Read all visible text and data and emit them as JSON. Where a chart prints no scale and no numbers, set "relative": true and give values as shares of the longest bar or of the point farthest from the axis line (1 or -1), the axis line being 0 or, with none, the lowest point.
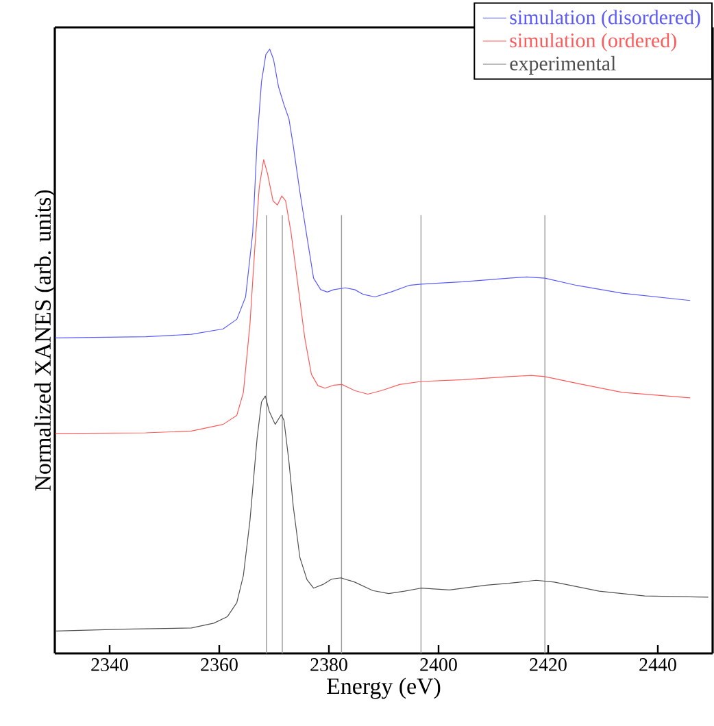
{
  "chart_data": {
    "type": "line",
    "xlabel": "Energy (eV)",
    "ylabel": "Normalized XANES (arb. units)",
    "xlim": [
      2330,
      2450
    ],
    "xticks": [
      2340,
      2360,
      2380,
      2400,
      2420,
      2440
    ],
    "relative": true,
    "tick_labels": "x",
    "legend": "top right",
    "line_style": "solid",
    "series": [
      {
        "name": "simulation (disordered)",
        "color": "#5a5aff",
        "x": [
          2330.1,
          2346.6,
          2354.9,
          2360.7,
          2363.2,
          2364.8,
          2366.1,
          2366.9,
          2367.7,
          2368.5,
          2369.2,
          2369.9,
          2370.8,
          2371.8,
          2372.7,
          2373.5,
          2374.7,
          2376.0,
          2377.2,
          2378.5,
          2379.7,
          2380.9,
          2383.0,
          2384.7,
          2386.3,
          2388.4,
          2391.3,
          2394.6,
          2396.8,
          2404.5,
          2412.8,
          2416.1,
          2419.4,
          2425.2,
          2433.5,
          2445.9
        ],
        "values": [
          0.522,
          0.524,
          0.528,
          0.537,
          0.553,
          0.59,
          0.696,
          0.847,
          0.946,
          0.991,
          1.0,
          0.983,
          0.938,
          0.908,
          0.885,
          0.84,
          0.764,
          0.689,
          0.621,
          0.602,
          0.598,
          0.602,
          0.605,
          0.602,
          0.594,
          0.59,
          0.598,
          0.609,
          0.611,
          0.615,
          0.621,
          0.623,
          0.621,
          0.609,
          0.596,
          0.584
        ]
      },
      {
        "name": "simulation (ordered)",
        "color": "#ff5a5a",
        "x": [
          2330.1,
          2346.6,
          2354.9,
          2360.7,
          2363.2,
          2364.4,
          2365.6,
          2366.5,
          2367.3,
          2368.1,
          2368.8,
          2369.8,
          2370.6,
          2371.4,
          2372.1,
          2373.1,
          2374.3,
          2375.6,
          2376.8,
          2378.0,
          2379.3,
          2380.9,
          2382.4,
          2384.7,
          2387.1,
          2389.6,
          2392.9,
          2396.8,
          2404.5,
          2412.8,
          2416.9,
          2419.4,
          2425.2,
          2433.5,
          2445.9
        ],
        "values": [
          0.364,
          0.365,
          0.368,
          0.379,
          0.394,
          0.432,
          0.545,
          0.673,
          0.772,
          0.817,
          0.794,
          0.749,
          0.742,
          0.757,
          0.749,
          0.696,
          0.613,
          0.522,
          0.462,
          0.443,
          0.439,
          0.444,
          0.445,
          0.435,
          0.429,
          0.435,
          0.445,
          0.45,
          0.453,
          0.458,
          0.46,
          0.458,
          0.447,
          0.432,
          0.423
        ]
      },
      {
        "name": "experimental",
        "color": "#505050",
        "x": [
          2330.1,
          2342.5,
          2354.9,
          2359.0,
          2361.5,
          2363.2,
          2364.4,
          2365.6,
          2366.9,
          2367.7,
          2368.4,
          2369.1,
          2370.2,
          2371.3,
          2371.8,
          2372.7,
          2373.5,
          2374.7,
          2376.0,
          2377.2,
          2378.9,
          2380.5,
          2382.2,
          2384.7,
          2388.0,
          2390.9,
          2393.8,
          2396.8,
          2402.0,
          2408.7,
          2412.8,
          2417.8,
          2421.1,
          2429.3,
          2437.6,
          2449.2
        ],
        "values": [
          0.037,
          0.04,
          0.042,
          0.05,
          0.061,
          0.084,
          0.129,
          0.22,
          0.356,
          0.416,
          0.426,
          0.401,
          0.379,
          0.395,
          0.386,
          0.318,
          0.243,
          0.159,
          0.122,
          0.108,
          0.114,
          0.123,
          0.125,
          0.118,
          0.104,
          0.099,
          0.103,
          0.108,
          0.105,
          0.113,
          0.116,
          0.121,
          0.118,
          0.103,
          0.095,
          0.093
        ]
      }
    ],
    "ref_lines": [
      {
        "axis": "x",
        "value": 2368.6,
        "color": "#999999",
        "line_style": "solid"
      },
      {
        "axis": "x",
        "value": 2371.5,
        "color": "#999999",
        "line_style": "solid"
      },
      {
        "axis": "x",
        "value": 2382.3,
        "color": "#999999",
        "line_style": "solid"
      },
      {
        "axis": "x",
        "value": 2396.8,
        "color": "#999999",
        "line_style": "solid"
      },
      {
        "axis": "x",
        "value": 2419.4,
        "color": "#999999",
        "line_style": "solid"
      }
    ]
  }
}
